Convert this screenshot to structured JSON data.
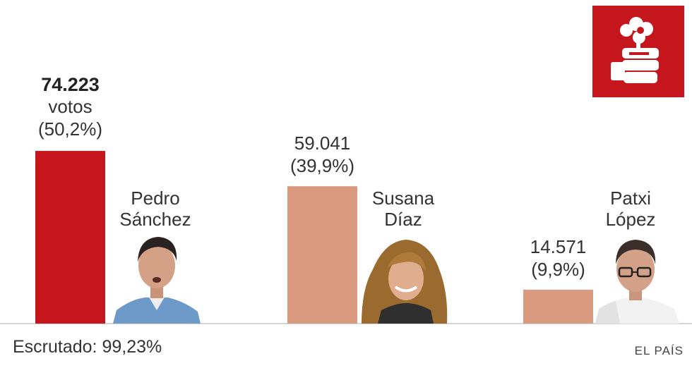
{
  "chart_data": {
    "type": "bar",
    "categories": [
      "Pedro Sánchez",
      "Susana Díaz",
      "Patxi López"
    ],
    "name_lines": [
      [
        "Pedro",
        "Sánchez"
      ],
      [
        "Susana",
        "Díaz"
      ],
      [
        "Patxi",
        "López"
      ]
    ],
    "values": [
      74223,
      59041,
      14571
    ],
    "value_labels": [
      "74.223",
      "59.041",
      "14.571"
    ],
    "vote_word": "votos",
    "percent_labels": [
      "(50,2%)",
      "(39,9%)",
      "(9,9%)"
    ],
    "ylim": [
      0,
      100000
    ],
    "bar_colors": [
      "#c4161c",
      "#d99a7f",
      "#d99a7f"
    ],
    "axis_color": "#c8c8c8"
  },
  "footer": {
    "scrutinized": "Escrutado: 99,23%",
    "source": "EL PAÍS"
  },
  "logo": {
    "icon": "psoe-rose-fist-icon",
    "color": "#c4161c"
  }
}
